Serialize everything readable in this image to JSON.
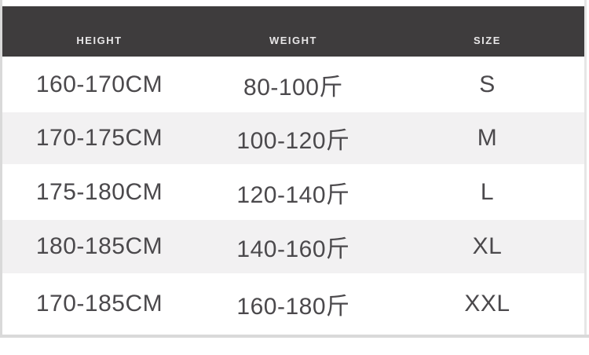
{
  "size_chart": {
    "columns": [
      {
        "key": "height",
        "label": "HEIGHT"
      },
      {
        "key": "weight",
        "label": "WEIGHT"
      },
      {
        "key": "size",
        "label": "SIZE"
      }
    ],
    "rows": [
      {
        "height": "160-170CM",
        "weight": "80-100斤",
        "size": "S"
      },
      {
        "height": "170-175CM",
        "weight": "100-120斤",
        "size": "M"
      },
      {
        "height": "175-180CM",
        "weight": "120-140斤",
        "size": "L"
      },
      {
        "height": "180-185CM",
        "weight": "140-160斤",
        "size": "XL"
      },
      {
        "height": "170-185CM",
        "weight": "160-180斤",
        "size": "XXL"
      }
    ]
  },
  "colors": {
    "header_bg": "#3e3c3d",
    "header_text": "#e8e7e8",
    "row_alt_bg": "#f2f1f2",
    "row_text": "#4b494c",
    "edge": "#d9d9d9"
  }
}
